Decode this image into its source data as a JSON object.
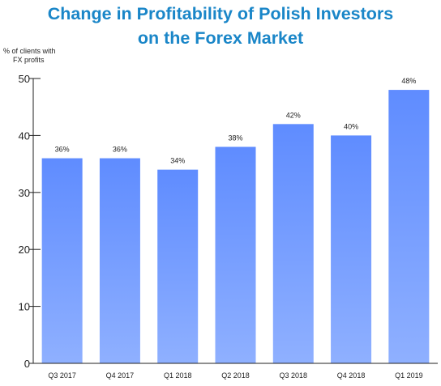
{
  "title_line1": "Change in Profitability of Polish Investors",
  "title_line2": "on the Forex Market",
  "ylabel_line1": "% of clients with",
  "ylabel_line2": "FX profits",
  "colors": {
    "title": "#1a86c8",
    "bar_top": "#5f8cff",
    "bar_bottom": "#8fb0ff",
    "axis": "#222222"
  },
  "chart_data": {
    "type": "bar",
    "title": "Change in Profitability of Polish Investors on the Forex Market",
    "ylabel": "% of clients with FX profits",
    "xlabel": "",
    "ylim": [
      0,
      50
    ],
    "yticks": [
      0,
      10,
      20,
      30,
      40,
      50
    ],
    "grid": false,
    "categories": [
      "Q3 2017",
      "Q4 2017",
      "Q1 2018",
      "Q2 2018",
      "Q3 2018",
      "Q4 2018",
      "Q1 2019"
    ],
    "values": [
      36,
      36,
      34,
      38,
      42,
      40,
      48
    ],
    "data_labels": [
      "36%",
      "36%",
      "34%",
      "38%",
      "42%",
      "40%",
      "48%"
    ]
  }
}
